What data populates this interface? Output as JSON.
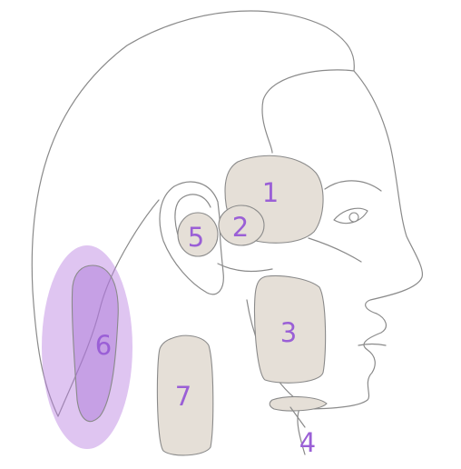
{
  "diagram": {
    "colors": {
      "outline": "#8a8a8a",
      "region_fill": "#e5dfd7",
      "highlight_fill": "#b87fe0",
      "label": "#9a5fd6"
    },
    "regions": [
      {
        "label": "1",
        "highlighted": false
      },
      {
        "label": "2",
        "highlighted": false
      },
      {
        "label": "3",
        "highlighted": false
      },
      {
        "label": "4",
        "highlighted": false
      },
      {
        "label": "5",
        "highlighted": false
      },
      {
        "label": "6",
        "highlighted": true
      },
      {
        "label": "7",
        "highlighted": false
      }
    ]
  }
}
